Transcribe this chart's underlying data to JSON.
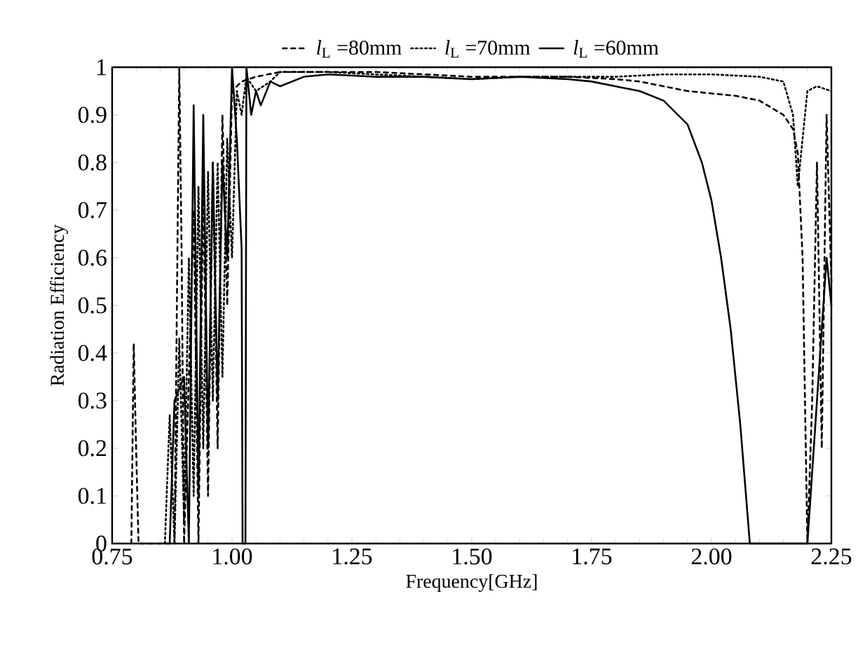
{
  "chart_data": {
    "type": "line",
    "xlabel": "Frequency[GHz]",
    "ylabel": "Radiation Efficiency",
    "xlim": [
      0.75,
      2.25
    ],
    "ylim": [
      0,
      1
    ],
    "xticks": [
      0.75,
      {
        "value": 1,
        "label": "1.00"
      },
      1.25,
      {
        "value": 1.5,
        "label": "1.50"
      },
      1.75,
      {
        "value": 2,
        "label": "2.00"
      },
      2.25
    ],
    "yticks": [
      0,
      0.1,
      0.2,
      0.3,
      0.4,
      0.5,
      0.6,
      0.7,
      0.8,
      0.9,
      1
    ],
    "grid": false,
    "legend": "top",
    "marker": "none",
    "series": [
      {
        "name": "*l*$_{L}$ =80mm",
        "color": "#000000",
        "line_style": "dashed",
        "x": [
          0.79,
          0.795,
          0.8,
          0.805,
          0.81,
          0.88,
          0.885,
          0.89,
          0.895,
          0.9,
          0.92,
          0.93,
          0.94,
          0.95,
          0.96,
          0.97,
          0.98,
          0.99,
          1.0,
          1.02,
          1.05,
          1.1,
          1.2,
          1.3,
          1.4,
          1.5,
          1.6,
          1.7,
          1.8,
          1.85,
          1.9,
          1.95,
          2.0,
          2.05,
          2.1,
          2.15,
          2.17,
          2.18,
          2.19,
          2.2,
          2.21,
          2.22,
          2.23,
          2.24,
          2.25
        ],
        "values": [
          0,
          0.42,
          0.2,
          0,
          0,
          0,
          0.5,
          1.0,
          0.6,
          0,
          0.7,
          0,
          0.75,
          0.1,
          0.8,
          0.2,
          0.9,
          0.5,
          0.95,
          0.97,
          0.98,
          0.99,
          0.99,
          0.99,
          0.985,
          0.98,
          0.98,
          0.98,
          0.975,
          0.97,
          0.96,
          0.95,
          0.945,
          0.94,
          0.93,
          0.9,
          0.87,
          0.82,
          0.6,
          0.0,
          0.3,
          0.8,
          0.2,
          0.9,
          0.55
        ]
      },
      {
        "name": "*l*$_{L}$ =70mm",
        "color": "#000000",
        "line_style": "dotted",
        "x": [
          0.86,
          0.87,
          0.88,
          0.89,
          0.9,
          0.91,
          0.92,
          0.93,
          0.94,
          0.95,
          0.96,
          0.97,
          0.98,
          0.99,
          1.0,
          1.01,
          1.02,
          1.03,
          1.05,
          1.08,
          1.1,
          1.15,
          1.2,
          1.3,
          1.4,
          1.5,
          1.6,
          1.7,
          1.8,
          1.9,
          2.0,
          2.1,
          2.15,
          2.17,
          2.18,
          2.19,
          2.2,
          2.22,
          2.25
        ],
        "values": [
          0,
          0.27,
          0,
          0.43,
          0.05,
          0.6,
          0.1,
          0.75,
          0.2,
          0.78,
          0.3,
          0.8,
          0.35,
          0.85,
          0.6,
          0.95,
          0.9,
          0.98,
          0.95,
          0.97,
          0.99,
          0.99,
          0.99,
          0.985,
          0.98,
          0.975,
          0.98,
          0.98,
          0.98,
          0.985,
          0.985,
          0.98,
          0.97,
          0.9,
          0.75,
          0.85,
          0.95,
          0.96,
          0.95
        ]
      },
      {
        "name": "*l*$_{L}$ =60mm",
        "color": "#000000",
        "line_style": "solid",
        "x": [
          0.87,
          0.88,
          0.9,
          0.91,
          0.92,
          0.93,
          0.94,
          0.95,
          0.96,
          0.97,
          0.98,
          0.99,
          1.0,
          1.01,
          1.02,
          1.022,
          1.028,
          1.03,
          1.04,
          1.05,
          1.06,
          1.08,
          1.1,
          1.15,
          1.2,
          1.3,
          1.4,
          1.5,
          1.6,
          1.7,
          1.75,
          1.8,
          1.85,
          1.9,
          1.95,
          1.98,
          2.0,
          2.02,
          2.04,
          2.06,
          2.08,
          2.2,
          2.22,
          2.24,
          2.25
        ],
        "values": [
          0,
          0.3,
          0.35,
          0,
          0.92,
          0.1,
          0.9,
          0.2,
          0.8,
          0.3,
          0.8,
          0.6,
          1.0,
          0.85,
          0.62,
          0,
          0,
          1.0,
          0.9,
          0.95,
          0.92,
          0.97,
          0.96,
          0.98,
          0.985,
          0.98,
          0.98,
          0.975,
          0.98,
          0.975,
          0.97,
          0.96,
          0.95,
          0.93,
          0.88,
          0.8,
          0.72,
          0.6,
          0.45,
          0.25,
          0,
          0,
          0.3,
          0.6,
          0.5
        ]
      }
    ]
  }
}
